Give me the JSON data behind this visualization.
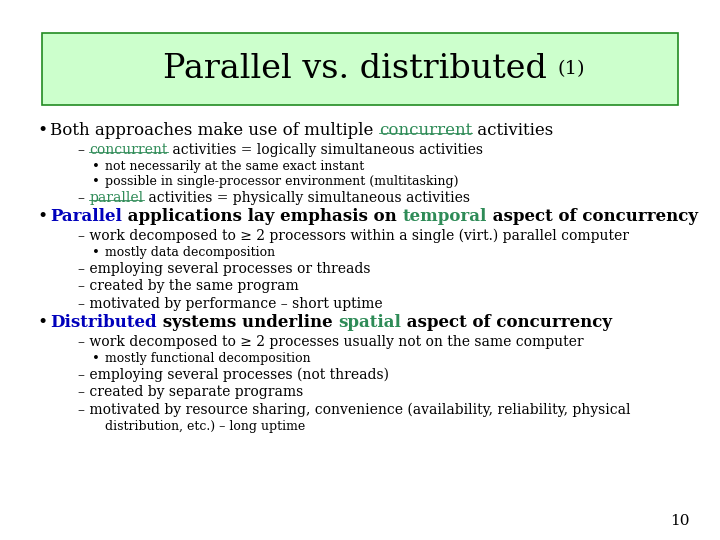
{
  "title_main": "Parallel vs. distributed ",
  "title_small": "(1)",
  "bg_color": "#ffffff",
  "header_bg": "#ccffcc",
  "header_border": "#228B22",
  "black": "#000000",
  "blue": "#0000bb",
  "teal": "#2e8b57",
  "page_num": "10",
  "fig_width": 7.2,
  "fig_height": 5.4,
  "dpi": 100,
  "lines": [
    {
      "indent": 0,
      "bullet": true,
      "bold": false,
      "segments": [
        {
          "text": "Both approaches make use of multiple ",
          "color": "#000000",
          "style": "normal"
        },
        {
          "text": "concurrent",
          "color": "#2e8b57",
          "style": "underline"
        },
        {
          "text": " activities",
          "color": "#000000",
          "style": "normal"
        }
      ]
    },
    {
      "indent": 1,
      "bullet": false,
      "bold": false,
      "segments": [
        {
          "text": "– ",
          "color": "#000000",
          "style": "normal"
        },
        {
          "text": "concurrent",
          "color": "#2e8b57",
          "style": "underline"
        },
        {
          "text": " activities = logically simultaneous activities",
          "color": "#000000",
          "style": "normal"
        }
      ]
    },
    {
      "indent": 2,
      "bullet": true,
      "bold": false,
      "segments": [
        {
          "text": "not necessarily at the same exact instant",
          "color": "#000000",
          "style": "normal"
        }
      ]
    },
    {
      "indent": 2,
      "bullet": true,
      "bold": false,
      "segments": [
        {
          "text": "possible in single-processor environment (multitasking)",
          "color": "#000000",
          "style": "normal"
        }
      ]
    },
    {
      "indent": 1,
      "bullet": false,
      "bold": false,
      "segments": [
        {
          "text": "– ",
          "color": "#000000",
          "style": "normal"
        },
        {
          "text": "parallel",
          "color": "#2e8b57",
          "style": "underline"
        },
        {
          "text": " activities = physically simultaneous activities",
          "color": "#000000",
          "style": "normal"
        }
      ]
    },
    {
      "indent": 0,
      "bullet": true,
      "bold": true,
      "segments": [
        {
          "text": "Parallel",
          "color": "#0000bb",
          "style": "bold"
        },
        {
          "text": " applications lay emphasis on ",
          "color": "#000000",
          "style": "bold"
        },
        {
          "text": "temporal",
          "color": "#2e8b57",
          "style": "bold"
        },
        {
          "text": " aspect of concurrency",
          "color": "#000000",
          "style": "bold"
        }
      ]
    },
    {
      "indent": 1,
      "bullet": false,
      "bold": false,
      "segments": [
        {
          "text": "– work decomposed to ≥ 2 processors within a single (virt.) parallel computer",
          "color": "#000000",
          "style": "normal"
        }
      ]
    },
    {
      "indent": 2,
      "bullet": true,
      "bold": false,
      "segments": [
        {
          "text": "mostly data decomposition",
          "color": "#000000",
          "style": "normal"
        }
      ]
    },
    {
      "indent": 1,
      "bullet": false,
      "bold": false,
      "segments": [
        {
          "text": "– employing several processes or threads",
          "color": "#000000",
          "style": "normal"
        }
      ]
    },
    {
      "indent": 1,
      "bullet": false,
      "bold": false,
      "segments": [
        {
          "text": "– created by the same program",
          "color": "#000000",
          "style": "normal"
        }
      ]
    },
    {
      "indent": 1,
      "bullet": false,
      "bold": false,
      "segments": [
        {
          "text": "– motivated by performance – short uptime",
          "color": "#000000",
          "style": "normal"
        }
      ]
    },
    {
      "indent": 0,
      "bullet": true,
      "bold": true,
      "segments": [
        {
          "text": "Distributed",
          "color": "#0000bb",
          "style": "bold"
        },
        {
          "text": " systems underline ",
          "color": "#000000",
          "style": "bold"
        },
        {
          "text": "spatial",
          "color": "#2e8b57",
          "style": "bold"
        },
        {
          "text": " aspect of concurrency",
          "color": "#000000",
          "style": "bold"
        }
      ]
    },
    {
      "indent": 1,
      "bullet": false,
      "bold": false,
      "segments": [
        {
          "text": "– work decomposed to ≥ 2 processes usually not on the same computer",
          "color": "#000000",
          "style": "normal"
        }
      ]
    },
    {
      "indent": 2,
      "bullet": true,
      "bold": false,
      "segments": [
        {
          "text": "mostly functional decomposition",
          "color": "#000000",
          "style": "normal"
        }
      ]
    },
    {
      "indent": 1,
      "bullet": false,
      "bold": false,
      "segments": [
        {
          "text": "– employing several processes (not threads)",
          "color": "#000000",
          "style": "normal"
        }
      ]
    },
    {
      "indent": 1,
      "bullet": false,
      "bold": false,
      "segments": [
        {
          "text": "– created by separate programs",
          "color": "#000000",
          "style": "normal"
        }
      ]
    },
    {
      "indent": 1,
      "bullet": false,
      "bold": false,
      "segments": [
        {
          "text": "– motivated by resource sharing, convenience (availability, reliability, physical",
          "color": "#000000",
          "style": "normal"
        }
      ]
    },
    {
      "indent": 2,
      "bullet": false,
      "bold": false,
      "segments": [
        {
          "text": "distribution, etc.) – long uptime",
          "color": "#000000",
          "style": "normal"
        }
      ]
    }
  ]
}
